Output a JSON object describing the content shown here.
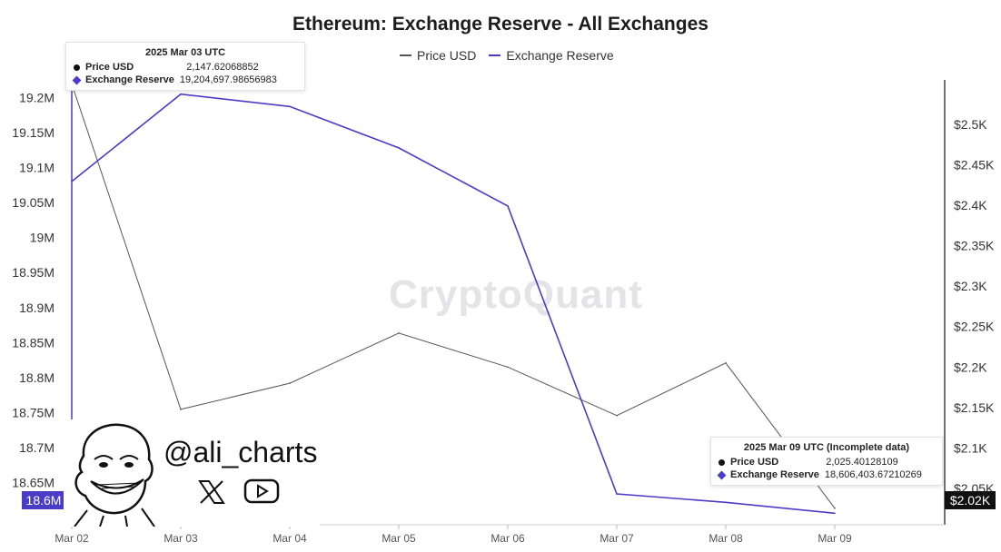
{
  "chart_data": {
    "type": "line",
    "title": "Ethereum: Exchange Reserve - All Exchanges",
    "x_categories": [
      "Mar 02",
      "Mar 03",
      "Mar 04",
      "Mar 05",
      "Mar 06",
      "Mar 07",
      "Mar 08",
      "Mar 09"
    ],
    "series": [
      {
        "name": "Price USD",
        "axis": "right",
        "color": "#555555",
        "values": [
          2550,
          2147.62068852,
          2180,
          2242,
          2200,
          2140,
          2205,
          2025.40128109
        ]
      },
      {
        "name": "Exchange Reserve",
        "axis": "left",
        "color": "#4b3cc8",
        "values": [
          19080000,
          19204697.98656983,
          19187000,
          19128000,
          19045000,
          18634000,
          18622000,
          18606403.67210269
        ]
      }
    ],
    "left_axis": {
      "ticks": [
        "19.2M",
        "19.15M",
        "19.1M",
        "19.05M",
        "19M",
        "18.95M",
        "18.9M",
        "18.85M",
        "18.8M",
        "18.75M",
        "18.7M",
        "18.65M"
      ],
      "tick_values": [
        19200000,
        19150000,
        19100000,
        19050000,
        19000000,
        18950000,
        18900000,
        18850000,
        18800000,
        18750000,
        18700000,
        18650000
      ],
      "range": [
        18590000,
        19225000
      ],
      "current_label": "18.6M"
    },
    "right_axis": {
      "ticks": [
        "$2.5K",
        "$2.45K",
        "$2.4K",
        "$2.35K",
        "$2.3K",
        "$2.25K",
        "$2.2K",
        "$2.15K",
        "$2.1K",
        "$2.05K"
      ],
      "tick_values": [
        2500,
        2450,
        2400,
        2350,
        2300,
        2250,
        2200,
        2150,
        2100,
        2050
      ],
      "range": [
        2005,
        2555
      ],
      "current_label": "$2.02K"
    },
    "grid": false,
    "legend": "top-center"
  },
  "watermark": "CryptoQuant",
  "tooltip_left": {
    "title": "2025 Mar 03 UTC",
    "price_label": "Price USD",
    "price_value": "2,147.62068852",
    "reserve_label": "Exchange Reserve",
    "reserve_value": "19,204,697.98656983"
  },
  "tooltip_right": {
    "title": "2025 Mar 09 UTC (Incomplete data)",
    "price_label": "Price USD",
    "price_value": "2,025.40128109",
    "reserve_label": "Exchange Reserve",
    "reserve_value": "18,606,403.67210269"
  },
  "credit": {
    "handle": "@ali_charts",
    "x_icon": "x-logo-icon",
    "youtube_icon": "youtube-play-icon"
  }
}
